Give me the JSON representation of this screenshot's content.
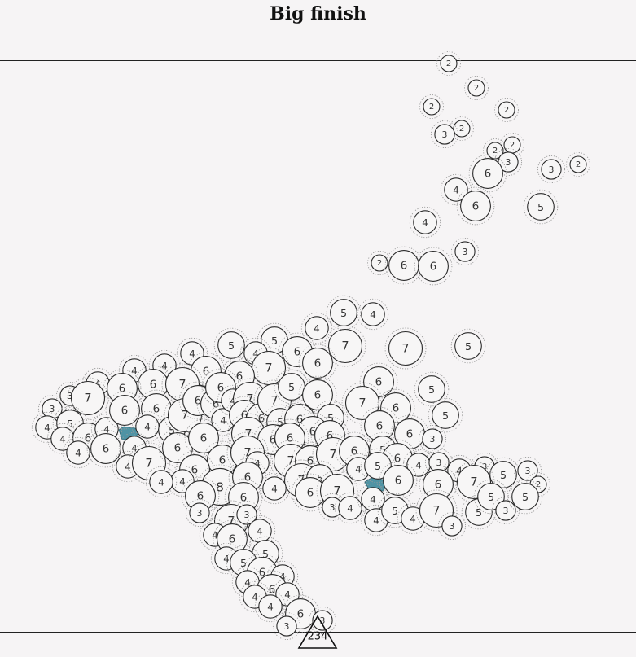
{
  "title": "Big finish",
  "marker_label": "234",
  "colors": {
    "background": "#f6f4f5",
    "accent": "#4f93a4"
  },
  "nodes": [
    [
      551,
      78,
      "2"
    ],
    [
      585,
      108,
      "2"
    ],
    [
      530,
      131,
      "2"
    ],
    [
      622,
      135,
      "2"
    ],
    [
      567,
      158,
      "2"
    ],
    [
      546,
      165,
      "3"
    ],
    [
      608,
      185,
      "2"
    ],
    [
      629,
      178,
      "2"
    ],
    [
      624,
      199,
      "3"
    ],
    [
      599,
      213,
      "6"
    ],
    [
      677,
      208,
      "3"
    ],
    [
      710,
      202,
      "2"
    ],
    [
      560,
      233,
      "4"
    ],
    [
      584,
      253,
      "6"
    ],
    [
      664,
      254,
      "5"
    ],
    [
      522,
      273,
      "4"
    ],
    [
      571,
      309,
      "3"
    ],
    [
      466,
      323,
      "2"
    ],
    [
      496,
      326,
      "6"
    ],
    [
      532,
      327,
      "6"
    ],
    [
      422,
      384,
      "5"
    ],
    [
      458,
      386,
      "4"
    ],
    [
      389,
      403,
      "4"
    ],
    [
      424,
      425,
      "7"
    ],
    [
      498,
      428,
      "7"
    ],
    [
      575,
      425,
      "5"
    ],
    [
      284,
      424,
      "5"
    ],
    [
      337,
      418,
      "5"
    ],
    [
      314,
      434,
      "4"
    ],
    [
      365,
      432,
      "6"
    ],
    [
      390,
      446,
      "6"
    ],
    [
      330,
      452,
      "7"
    ],
    [
      236,
      434,
      "4"
    ],
    [
      253,
      456,
      "6"
    ],
    [
      294,
      462,
      "6"
    ],
    [
      465,
      469,
      "6"
    ],
    [
      530,
      478,
      "5"
    ],
    [
      165,
      455,
      "4"
    ],
    [
      202,
      449,
      "4"
    ],
    [
      188,
      472,
      "6"
    ],
    [
      224,
      472,
      "7"
    ],
    [
      120,
      471,
      "4"
    ],
    [
      150,
      477,
      "6"
    ],
    [
      86,
      486,
      "3"
    ],
    [
      108,
      489,
      "7"
    ],
    [
      64,
      502,
      "3"
    ],
    [
      58,
      525,
      "4"
    ],
    [
      86,
      520,
      "5"
    ],
    [
      77,
      539,
      "4"
    ],
    [
      108,
      538,
      "6"
    ],
    [
      96,
      556,
      "4"
    ],
    [
      131,
      527,
      "4"
    ],
    [
      130,
      551,
      "6"
    ],
    [
      153,
      504,
      "6"
    ],
    [
      192,
      502,
      "6"
    ],
    [
      181,
      524,
      "4"
    ],
    [
      165,
      550,
      "4"
    ],
    [
      157,
      573,
      "4"
    ],
    [
      183,
      569,
      "7"
    ],
    [
      211,
      528,
      "5"
    ],
    [
      218,
      550,
      "6"
    ],
    [
      227,
      510,
      "7"
    ],
    [
      243,
      492,
      "6"
    ],
    [
      265,
      496,
      "6"
    ],
    [
      274,
      516,
      "4"
    ],
    [
      250,
      538,
      "6"
    ],
    [
      271,
      476,
      "6"
    ],
    [
      286,
      492,
      "4"
    ],
    [
      307,
      490,
      "7"
    ],
    [
      300,
      510,
      "6"
    ],
    [
      321,
      514,
      "6"
    ],
    [
      337,
      492,
      "7"
    ],
    [
      358,
      475,
      "5"
    ],
    [
      344,
      518,
      "5"
    ],
    [
      368,
      515,
      "6"
    ],
    [
      390,
      485,
      "6"
    ],
    [
      406,
      513,
      "5"
    ],
    [
      384,
      530,
      "6"
    ],
    [
      405,
      535,
      "6"
    ],
    [
      305,
      533,
      "7"
    ],
    [
      335,
      540,
      "6"
    ],
    [
      356,
      538,
      "6"
    ],
    [
      445,
      495,
      "7"
    ],
    [
      486,
      501,
      "6"
    ],
    [
      547,
      510,
      "5"
    ],
    [
      466,
      523,
      "6"
    ],
    [
      503,
      533,
      "6"
    ],
    [
      531,
      539,
      "3"
    ],
    [
      273,
      565,
      "6"
    ],
    [
      304,
      556,
      "7"
    ],
    [
      316,
      569,
      "4"
    ],
    [
      357,
      566,
      "7"
    ],
    [
      381,
      566,
      "6"
    ],
    [
      409,
      558,
      "7"
    ],
    [
      435,
      554,
      "6"
    ],
    [
      470,
      552,
      "5"
    ],
    [
      488,
      563,
      "6"
    ],
    [
      440,
      576,
      "4"
    ],
    [
      464,
      572,
      "5"
    ],
    [
      514,
      571,
      "4"
    ],
    [
      539,
      568,
      "3"
    ],
    [
      564,
      578,
      "4"
    ],
    [
      595,
      573,
      "3"
    ],
    [
      618,
      583,
      "5"
    ],
    [
      648,
      578,
      "3"
    ],
    [
      661,
      595,
      "2"
    ],
    [
      582,
      592,
      "7"
    ],
    [
      538,
      595,
      "6"
    ],
    [
      489,
      590,
      "6"
    ],
    [
      239,
      577,
      "6"
    ],
    [
      224,
      591,
      "4"
    ],
    [
      198,
      592,
      "4"
    ],
    [
      270,
      598,
      "8"
    ],
    [
      304,
      586,
      "6"
    ],
    [
      370,
      590,
      "7"
    ],
    [
      393,
      587,
      "5"
    ],
    [
      381,
      605,
      "6"
    ],
    [
      414,
      603,
      "7"
    ],
    [
      337,
      600,
      "4"
    ],
    [
      299,
      611,
      "6"
    ],
    [
      246,
      609,
      "6"
    ],
    [
      245,
      630,
      "3"
    ],
    [
      408,
      623,
      "3"
    ],
    [
      430,
      624,
      "4"
    ],
    [
      458,
      613,
      "4"
    ],
    [
      462,
      639,
      "4"
    ],
    [
      485,
      627,
      "5"
    ],
    [
      507,
      637,
      "4"
    ],
    [
      536,
      627,
      "7"
    ],
    [
      555,
      646,
      "3"
    ],
    [
      588,
      629,
      "5"
    ],
    [
      603,
      610,
      "5"
    ],
    [
      621,
      627,
      "3"
    ],
    [
      645,
      610,
      "5"
    ],
    [
      284,
      640,
      "7"
    ],
    [
      303,
      632,
      "3"
    ],
    [
      264,
      657,
      "4"
    ],
    [
      285,
      662,
      "6"
    ],
    [
      319,
      652,
      "4"
    ],
    [
      326,
      680,
      "5"
    ],
    [
      278,
      686,
      "4"
    ],
    [
      299,
      691,
      "5"
    ],
    [
      322,
      703,
      "6"
    ],
    [
      347,
      708,
      "4"
    ],
    [
      304,
      715,
      "4"
    ],
    [
      334,
      724,
      "6"
    ],
    [
      353,
      730,
      "4"
    ],
    [
      313,
      733,
      "4"
    ],
    [
      332,
      745,
      "4"
    ],
    [
      369,
      754,
      "6"
    ],
    [
      396,
      762,
      "3"
    ],
    [
      352,
      769,
      "3"
    ]
  ]
}
